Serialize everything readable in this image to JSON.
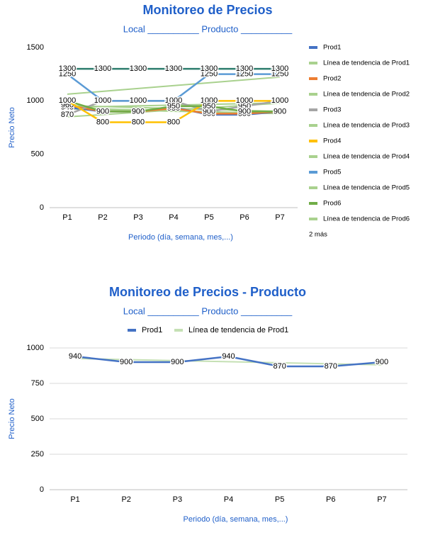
{
  "chart_data": [
    {
      "type": "line",
      "title": "Monitoreo de Precios",
      "subtitle": "Local __________ Producto __________",
      "y_label": "Precio Neto",
      "x_label": "Periodo (día, semana, mes,...)",
      "categories": [
        "P1",
        "P2",
        "P3",
        "P4",
        "P5",
        "P6",
        "P7"
      ],
      "ylim": [
        0,
        1500
      ],
      "yticks": [
        0,
        500,
        1000,
        1500
      ],
      "grid": false,
      "legend": "right",
      "legend_more": "2 más",
      "series": [
        {
          "name": "Prod1",
          "color": "#4472c4",
          "values": [
            940,
            900,
            900,
            940,
            870,
            870,
            900
          ],
          "trendline": {
            "name": "Línea de tendencia de Prod1",
            "color": "#a9d18e"
          }
        },
        {
          "name": "Prod2",
          "color": "#ed7d31",
          "values": [
            960,
            900,
            900,
            930,
            880,
            880,
            900
          ],
          "trendline": {
            "name": "Línea de tendencia de Prod2",
            "color": "#a9d18e"
          }
        },
        {
          "name": "Prod3",
          "color": "#a5a5a5",
          "values": [
            870,
            1000,
            1000,
            1000,
            900,
            950,
            1000
          ],
          "trendline": {
            "name": "Línea de tendencia de Prod3",
            "color": "#a9d18e"
          }
        },
        {
          "name": "Prod4",
          "color": "#ffc000",
          "values": [
            1000,
            800,
            800,
            800,
            1000,
            1000,
            1000
          ],
          "trendline": {
            "name": "Línea de tendencia de Prod4",
            "color": "#a9d18e"
          }
        },
        {
          "name": "Prod5",
          "color": "#5b9bd5",
          "values": [
            1250,
            1000,
            1000,
            1000,
            1250,
            1250,
            1250
          ],
          "trendline": {
            "name": "Línea de tendencia de Prod5",
            "color": "#a9d18e"
          }
        },
        {
          "name": "Prod6",
          "color": "#70ad47",
          "values": [
            1000,
            900,
            900,
            950,
            950,
            900,
            900
          ],
          "trendline": {
            "name": "Línea de tendencia de Prod6",
            "color": "#a9d18e"
          }
        },
        {
          "color": "#2e7d6e",
          "values": [
            1300,
            1300,
            1300,
            1300,
            1300,
            1300,
            1300
          ]
        }
      ]
    },
    {
      "type": "line",
      "title": "Monitoreo de Precios - Producto",
      "subtitle": "Local __________ Producto __________",
      "y_label": "Precio Neto",
      "x_label": "Periodo (día, semana, mes,...)",
      "categories": [
        "P1",
        "P2",
        "P3",
        "P4",
        "P5",
        "P6",
        "P7"
      ],
      "ylim": [
        0,
        1000
      ],
      "yticks": [
        0,
        250,
        500,
        750,
        1000
      ],
      "grid": true,
      "legend": "top",
      "series": [
        {
          "name": "Prod1",
          "color": "#4472c4",
          "values": [
            940,
            900,
            900,
            940,
            870,
            870,
            900
          ],
          "trendline": {
            "name": "Línea de tendencia de Prod1",
            "color": "#c5e0b4"
          }
        }
      ]
    }
  ]
}
